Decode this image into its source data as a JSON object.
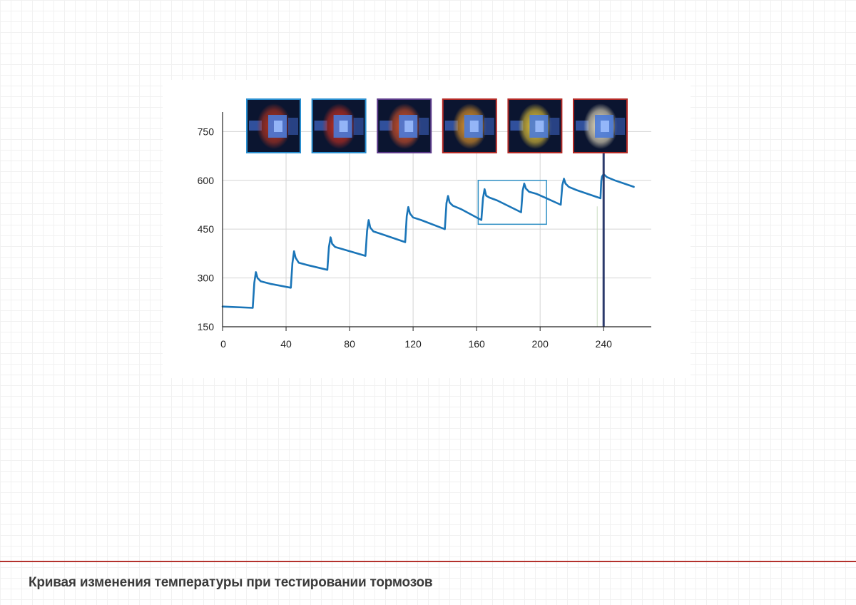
{
  "caption": "Кривая изменения температуры при тестировании тормозов",
  "colors": {
    "line": "#1a75b8",
    "grid": "#d4d4d4",
    "axis": "#222222",
    "marker_line": "#2b3a6b",
    "highlight_box": "#2e8fc4",
    "divider": "#b3312c"
  },
  "chart_data": {
    "type": "line",
    "title": "",
    "xlabel": "",
    "ylabel": "",
    "xlim": [
      0,
      270
    ],
    "ylim": [
      150,
      810
    ],
    "x_ticks": [
      0,
      40,
      80,
      120,
      160,
      200,
      240
    ],
    "y_ticks": [
      150,
      300,
      450,
      600,
      750
    ],
    "grid": true,
    "series": [
      {
        "x": [
          0,
          19,
          20,
          21,
          22,
          24,
          30,
          43,
          44,
          45,
          46,
          48,
          53,
          66,
          67,
          68,
          69,
          71,
          76,
          90,
          91,
          92,
          93,
          95,
          100,
          115,
          116,
          117,
          118,
          120,
          125,
          140,
          141,
          142,
          143,
          145,
          150,
          163,
          164,
          165,
          166,
          168,
          173,
          188,
          189,
          190,
          191,
          193,
          198,
          213,
          214,
          215,
          216,
          218,
          223,
          238,
          238.5,
          239,
          240,
          242,
          247,
          259
        ],
        "y": [
          212,
          208,
          285,
          318,
          300,
          290,
          282,
          270,
          345,
          382,
          362,
          347,
          340,
          325,
          395,
          425,
          405,
          395,
          388,
          368,
          445,
          478,
          455,
          443,
          435,
          410,
          490,
          518,
          498,
          486,
          478,
          450,
          530,
          552,
          532,
          522,
          512,
          478,
          545,
          573,
          553,
          547,
          538,
          502,
          568,
          590,
          575,
          565,
          558,
          525,
          585,
          605,
          590,
          580,
          570,
          545,
          598,
          612,
          619,
          610,
          600,
          580
        ]
      }
    ],
    "highlight_box": {
      "x": [
        161,
        204
      ],
      "y": [
        465,
        600
      ]
    },
    "vertical_marker": {
      "x": 240,
      "y": [
        150,
        713
      ]
    },
    "thumbnails": [
      {
        "name": "brake-thermal-1",
        "glow": "#c2361f",
        "border": "#2a8fd0"
      },
      {
        "name": "brake-thermal-2",
        "glow": "#d43220",
        "border": "#2a8fd0"
      },
      {
        "name": "brake-thermal-3",
        "glow": "#e2572a",
        "border": "#5b3a8a"
      },
      {
        "name": "brake-thermal-4",
        "glow": "#f3a02a",
        "border": "#b42a26"
      },
      {
        "name": "brake-thermal-5",
        "glow": "#f7d43a",
        "border": "#b42a26"
      },
      {
        "name": "brake-thermal-6",
        "glow": "#fff3cf",
        "border": "#b42a26"
      }
    ]
  }
}
